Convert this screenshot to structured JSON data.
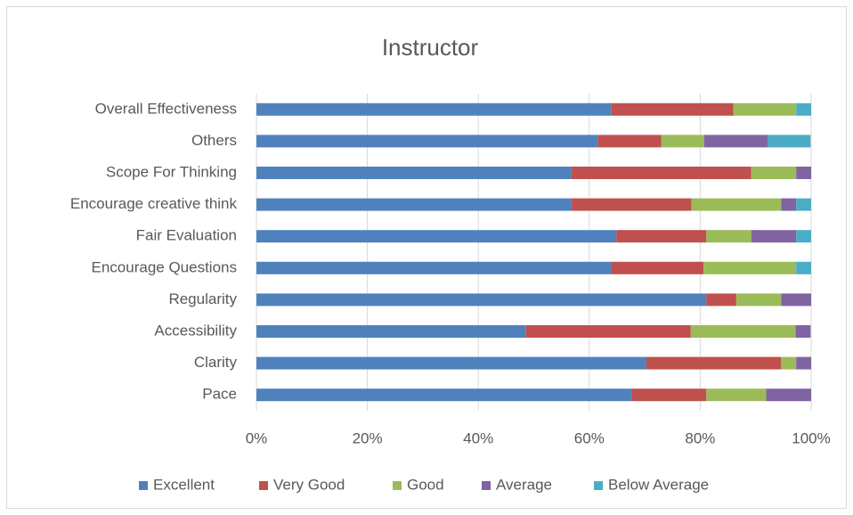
{
  "chart_data": {
    "type": "stacked_barh",
    "title": "Instructor",
    "categories": [
      "Overall Effectiveness",
      "Others",
      "Scope For Thinking",
      "Encourage creative think",
      "Fair Evaluation",
      "Encourage Questions",
      "Regularity",
      "Accessibility",
      "Clarity",
      "Pace"
    ],
    "series": [
      {
        "name": "Excellent",
        "color": "#4f81bd",
        "values": [
          64,
          61.5,
          56.8,
          56.8,
          64.9,
          63.9,
          81.1,
          48.6,
          70.3,
          67.6
        ]
      },
      {
        "name": "Very Good",
        "color": "#c0504d",
        "values": [
          22,
          11.5,
          32.4,
          21.6,
          16.2,
          16.7,
          5.4,
          29.7,
          24.3,
          13.5
        ]
      },
      {
        "name": "Good",
        "color": "#9bbb59",
        "values": [
          11.3,
          7.7,
          8.1,
          16.2,
          8.1,
          16.7,
          8.1,
          18.9,
          2.7,
          10.8
        ]
      },
      {
        "name": "Average",
        "color": "#8064a2",
        "values": [
          0,
          11.5,
          2.7,
          2.7,
          8.1,
          0,
          5.4,
          2.7,
          2.7,
          8.1
        ]
      },
      {
        "name": "Below Average",
        "color": "#4bacc6",
        "values": [
          2.7,
          7.7,
          0,
          2.7,
          2.7,
          2.7,
          0,
          0,
          0,
          0
        ]
      }
    ],
    "xlim": [
      0,
      100
    ],
    "xticks": [
      {
        "value": 0,
        "label": "0%"
      },
      {
        "value": 20,
        "label": "20%"
      },
      {
        "value": 40,
        "label": "40%"
      },
      {
        "value": 60,
        "label": "60%"
      },
      {
        "value": 80,
        "label": "80%"
      },
      {
        "value": 100,
        "label": "100%"
      }
    ],
    "grid": true,
    "legend": "bottom"
  }
}
